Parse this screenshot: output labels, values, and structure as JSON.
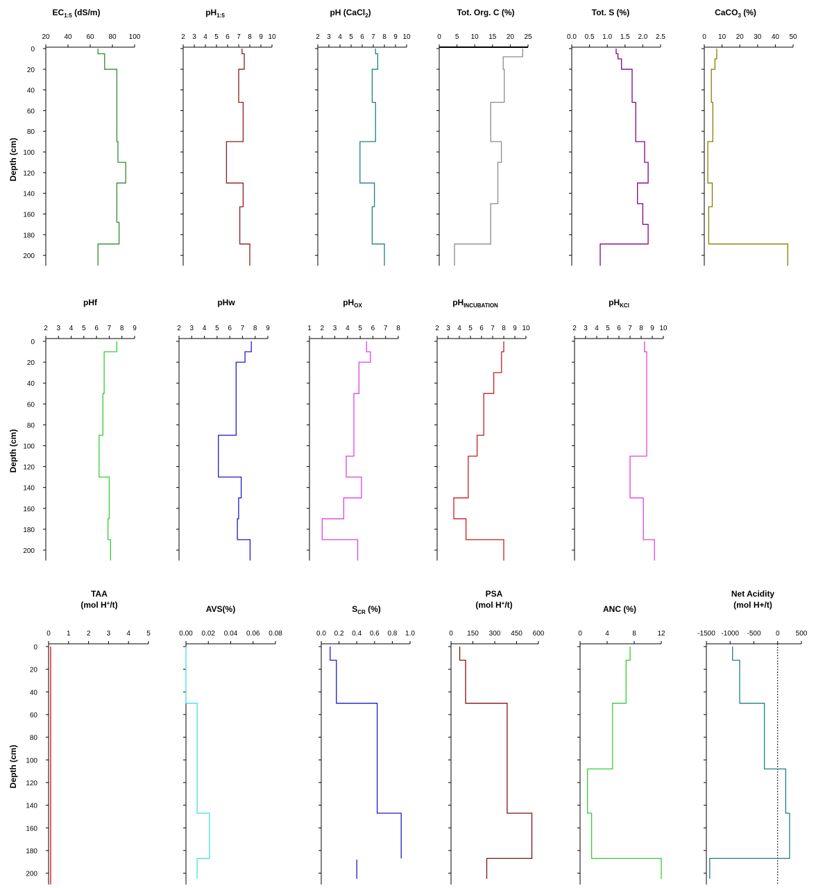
{
  "figure": {
    "ylabel": "Depth (cm)"
  },
  "chart_data": [
    {
      "id": "ec",
      "type": "line",
      "title": "EC",
      "title_sub": "1:5",
      "title_tail": " (dS/m)",
      "xticks": [
        "20",
        "40",
        "60",
        "80",
        "100"
      ],
      "xlim": [
        20,
        100
      ],
      "yticks": [
        "0",
        "20",
        "40",
        "60",
        "80",
        "100",
        "120",
        "140",
        "160",
        "180",
        "200"
      ],
      "ylim": [
        0,
        210
      ],
      "color": "#2e8b2e",
      "y": [
        0,
        5,
        5,
        20,
        20,
        90,
        90,
        110,
        110,
        130,
        130,
        168,
        168,
        189,
        189,
        210
      ],
      "x": [
        67,
        67,
        73,
        73,
        84,
        84,
        85,
        85,
        92,
        92,
        84,
        84,
        86,
        86,
        67,
        67
      ]
    },
    {
      "id": "ph15",
      "type": "line",
      "title": "pH",
      "title_sub": "1:5",
      "title_tail": "",
      "xticks": [
        "2",
        "3",
        "4",
        "5",
        "6",
        "7",
        "8",
        "9",
        "10"
      ],
      "xlim": [
        2,
        10
      ],
      "yticks": [
        "0",
        "20",
        "40",
        "60",
        "80",
        "100",
        "120",
        "140",
        "160",
        "180",
        "200"
      ],
      "ylim": [
        0,
        210
      ],
      "color": "#8b1a1a",
      "y": [
        0,
        5,
        5,
        20,
        20,
        52,
        52,
        90,
        90,
        130,
        130,
        153,
        153,
        189,
        189,
        210
      ],
      "x": [
        7.3,
        7.3,
        7.5,
        7.5,
        7.0,
        7.0,
        7.4,
        7.4,
        5.9,
        5.9,
        7.4,
        7.4,
        7.1,
        7.1,
        8.0,
        8.0
      ]
    },
    {
      "id": "phcacl2",
      "type": "line",
      "title": "pH (CaCl",
      "title_sub": "2",
      "title_tail": ")",
      "xticks": [
        "2",
        "3",
        "4",
        "5",
        "6",
        "7",
        "8",
        "9",
        "10"
      ],
      "xlim": [
        2,
        10
      ],
      "yticks": [
        "0",
        "20",
        "40",
        "60",
        "80",
        "100",
        "120",
        "140",
        "160",
        "180",
        "200"
      ],
      "ylim": [
        0,
        210
      ],
      "color": "#1a8080",
      "y": [
        0,
        5,
        5,
        20,
        20,
        52,
        52,
        90,
        90,
        130,
        130,
        153,
        153,
        189,
        189,
        210
      ],
      "x": [
        7.2,
        7.2,
        7.4,
        7.4,
        6.9,
        6.9,
        7.2,
        7.2,
        5.8,
        5.8,
        7.1,
        7.1,
        6.9,
        6.9,
        8.0,
        8.0
      ]
    },
    {
      "id": "toc",
      "type": "line",
      "title": "Tot. Org. C (%)",
      "title_sub": "",
      "title_tail": "",
      "xticks": [
        "0",
        "5",
        "10",
        "15",
        "20",
        "25"
      ],
      "xlim": [
        0,
        25
      ],
      "yticks": [
        "0",
        "20",
        "40",
        "60",
        "80",
        "100",
        "120",
        "140",
        "160",
        "180",
        "200"
      ],
      "ylim": [
        0,
        210
      ],
      "color": "#8a8a8a",
      "y": [
        0,
        8,
        8,
        20,
        20,
        52,
        52,
        90,
        90,
        110,
        110,
        150,
        150,
        189,
        189,
        210
      ],
      "x": [
        23.5,
        23.5,
        18,
        18,
        18.3,
        18.3,
        14.5,
        14.5,
        17.5,
        17.5,
        16.5,
        16.5,
        14.5,
        14.5,
        4.3,
        4.3
      ]
    },
    {
      "id": "tots",
      "type": "line",
      "title": "Tot. S (%)",
      "title_sub": "",
      "title_tail": "",
      "xticks": [
        "0.0",
        "0.5",
        "1.0",
        "1.5",
        "2.0",
        "2.5"
      ],
      "xlim": [
        0,
        2.5
      ],
      "yticks": [
        "0",
        "20",
        "40",
        "60",
        "80",
        "100",
        "120",
        "140",
        "160",
        "180",
        "200"
      ],
      "ylim": [
        0,
        210
      ],
      "color": "#800080",
      "y": [
        0,
        5,
        5,
        10,
        10,
        20,
        20,
        52,
        52,
        90,
        90,
        110,
        110,
        130,
        130,
        150,
        150,
        170,
        170,
        189,
        189,
        210
      ],
      "x": [
        1.25,
        1.25,
        1.3,
        1.3,
        1.4,
        1.4,
        1.7,
        1.7,
        1.8,
        1.8,
        2.05,
        2.05,
        2.15,
        2.15,
        1.85,
        1.85,
        2.0,
        2.0,
        2.15,
        2.15,
        0.8,
        0.8
      ]
    },
    {
      "id": "caco3",
      "type": "line",
      "title": "CaCO",
      "title_sub": "3",
      "title_tail": " (%)",
      "xticks": [
        "0",
        "10",
        "20",
        "30",
        "40",
        "50"
      ],
      "xlim": [
        0,
        50
      ],
      "yticks": [
        "0",
        "20",
        "40",
        "60",
        "80",
        "100",
        "120",
        "140",
        "160",
        "180",
        "200"
      ],
      "ylim": [
        0,
        210
      ],
      "color": "#808000",
      "y": [
        0,
        10,
        10,
        20,
        20,
        52,
        52,
        90,
        90,
        130,
        130,
        153,
        153,
        189,
        189,
        210
      ],
      "x": [
        7,
        7,
        6,
        6,
        4,
        4,
        4.8,
        4.8,
        2,
        2,
        4.5,
        4.5,
        2.5,
        2.5,
        47,
        47
      ]
    },
    {
      "id": "phf",
      "type": "line",
      "title": "pHf",
      "title_sub": "",
      "title_tail": "",
      "xticks": [
        "2",
        "3",
        "4",
        "5",
        "6",
        "7",
        "8",
        "9"
      ],
      "xlim": [
        2,
        9
      ],
      "yticks": [
        "0",
        "20",
        "40",
        "60",
        "80",
        "100",
        "120",
        "140",
        "160",
        "180",
        "200"
      ],
      "ylim": [
        0,
        210
      ],
      "color": "#33cc33",
      "y": [
        0,
        10,
        10,
        50,
        50,
        90,
        90,
        130,
        130,
        170,
        170,
        190,
        190,
        210
      ],
      "x": [
        7.6,
        7.6,
        6.6,
        6.6,
        6.5,
        6.5,
        6.2,
        6.2,
        7.0,
        7.0,
        6.9,
        6.9,
        7.1,
        7.1
      ]
    },
    {
      "id": "phw",
      "type": "line",
      "title": "pHw",
      "title_sub": "",
      "title_tail": "",
      "xticks": [
        "2",
        "3",
        "4",
        "5",
        "6",
        "7",
        "8",
        "9"
      ],
      "xlim": [
        2,
        9
      ],
      "yticks": [
        "0",
        "20",
        "40",
        "60",
        "80",
        "100",
        "120",
        "140",
        "160",
        "180",
        "200"
      ],
      "ylim": [
        0,
        210
      ],
      "color": "#1a1acc",
      "y": [
        0,
        10,
        10,
        20,
        20,
        90,
        90,
        130,
        130,
        150,
        150,
        170,
        170,
        190,
        190,
        210
      ],
      "x": [
        7.7,
        7.7,
        7.2,
        7.2,
        6.5,
        6.5,
        5.1,
        5.1,
        6.9,
        6.9,
        6.7,
        6.7,
        6.6,
        6.6,
        7.6,
        7.6
      ]
    },
    {
      "id": "phox",
      "type": "line",
      "title": "pH",
      "title_sub": "OX",
      "title_tail": "",
      "xticks": [
        "1",
        "2",
        "3",
        "4",
        "5",
        "6",
        "7",
        "8"
      ],
      "xlim": [
        1,
        8
      ],
      "yticks": [
        "0",
        "20",
        "40",
        "60",
        "80",
        "100",
        "120",
        "140",
        "160",
        "180",
        "200"
      ],
      "ylim": [
        0,
        210
      ],
      "color": "#e040e0",
      "y": [
        0,
        10,
        10,
        20,
        20,
        50,
        50,
        110,
        110,
        130,
        130,
        150,
        150,
        170,
        170,
        190,
        190,
        210
      ],
      "x": [
        5.5,
        5.5,
        5.8,
        5.8,
        4.9,
        4.9,
        4.5,
        4.5,
        3.9,
        3.9,
        5.1,
        5.1,
        3.7,
        3.7,
        2.0,
        2.0,
        4.8,
        4.8
      ]
    },
    {
      "id": "phinc",
      "type": "line",
      "title": "pH",
      "title_sub": "INCUBATION",
      "title_tail": "",
      "xticks": [
        "2",
        "3",
        "4",
        "5",
        "6",
        "7",
        "8",
        "9",
        "10"
      ],
      "xlim": [
        2,
        10
      ],
      "yticks": [
        "0",
        "20",
        "40",
        "60",
        "80",
        "100",
        "120",
        "140",
        "160",
        "180",
        "200"
      ],
      "ylim": [
        0,
        210
      ],
      "color": "#cc1a1a",
      "y": [
        0,
        10,
        10,
        30,
        30,
        50,
        50,
        90,
        90,
        110,
        110,
        150,
        150,
        170,
        170,
        190,
        190,
        210
      ],
      "x": [
        8.0,
        8.0,
        7.8,
        7.8,
        7.1,
        7.1,
        6.2,
        6.2,
        5.6,
        5.6,
        4.8,
        4.8,
        3.5,
        3.5,
        4.6,
        4.6,
        8.0,
        8.0
      ]
    },
    {
      "id": "phkcl",
      "type": "line",
      "title": "pH",
      "title_sub": "KCl",
      "title_tail": "",
      "xticks": [
        "2",
        "3",
        "4",
        "5",
        "6",
        "7",
        "8",
        "9",
        "10"
      ],
      "xlim": [
        2,
        10
      ],
      "yticks": [
        "0",
        "20",
        "40",
        "60",
        "80",
        "100",
        "120",
        "140",
        "160",
        "180",
        "200"
      ],
      "ylim": [
        0,
        210
      ],
      "color": "#e040e0",
      "y": [
        0,
        10,
        10,
        110,
        110,
        150,
        150,
        190,
        190,
        210
      ],
      "x": [
        8.3,
        8.3,
        8.5,
        8.5,
        7.0,
        7.0,
        8.2,
        8.2,
        9.2,
        9.2
      ]
    },
    {
      "id": "taa",
      "type": "line",
      "title": "TAA",
      "title_line2": "(mol H",
      "title_line2_sup": "+",
      "title_line2_tail": "/t)",
      "title_sub": "",
      "title_tail": "",
      "xticks": [
        "0",
        "1",
        "2",
        "3",
        "4",
        "5"
      ],
      "xlim": [
        0,
        5
      ],
      "yticks": [
        "0",
        "20",
        "40",
        "60",
        "80",
        "100",
        "120",
        "140",
        "160",
        "180",
        "200"
      ],
      "ylim": [
        0,
        210
      ],
      "color": "#ff0000",
      "y": [
        0,
        210
      ],
      "x": [
        0.1,
        0.1
      ]
    },
    {
      "id": "avs",
      "type": "line",
      "title": "AVS(%)",
      "title_sub": "",
      "title_tail": "",
      "xticks": [
        "0.00",
        "0.02",
        "0.04",
        "0.06",
        "0.08"
      ],
      "xlim": [
        0,
        0.08
      ],
      "yticks": [
        "0",
        "20",
        "40",
        "60",
        "80",
        "100",
        "120",
        "140",
        "160",
        "180",
        "200"
      ],
      "ylim": [
        0,
        210
      ],
      "color": "#40e0e0",
      "y": [
        0,
        50,
        50,
        147,
        147,
        187,
        187,
        205
      ],
      "x": [
        0.0,
        0.0,
        0.01,
        0.01,
        0.021,
        0.021,
        0.01,
        0.01
      ]
    },
    {
      "id": "scr",
      "type": "line",
      "title": "S",
      "title_sub": "CR",
      "title_tail": " (%)",
      "xticks": [
        "0.0",
        "0.2",
        "0.4",
        "0.6",
        "0.8",
        "1.0"
      ],
      "xlim": [
        0,
        1
      ],
      "yticks": [
        "0",
        "20",
        "40",
        "60",
        "80",
        "100",
        "120",
        "140",
        "160",
        "180",
        "200"
      ],
      "ylim": [
        0,
        210
      ],
      "color": "#1a1acc",
      "y": [
        0,
        12,
        12,
        50,
        50,
        147,
        147,
        187
      ],
      "x": [
        0.1,
        0.1,
        0.17,
        0.17,
        0.63,
        0.63,
        0.9,
        0.9
      ],
      "extra_x": [
        0.4,
        0.4
      ],
      "extra_y": [
        188,
        205
      ]
    },
    {
      "id": "psa",
      "type": "line",
      "title": "PSA",
      "title_line2": "(mol H",
      "title_line2_sup": "+",
      "title_line2_tail": "/t)",
      "title_sub": "",
      "title_tail": "",
      "xticks": [
        "0",
        "150",
        "300",
        "450",
        "600"
      ],
      "xlim": [
        0,
        600
      ],
      "yticks": [
        "0",
        "20",
        "40",
        "60",
        "80",
        "100",
        "120",
        "140",
        "160",
        "180",
        "200"
      ],
      "ylim": [
        0,
        210
      ],
      "color": "#801010",
      "y": [
        0,
        12,
        12,
        50,
        50,
        147,
        147,
        187,
        187,
        205
      ],
      "x": [
        60,
        60,
        100,
        100,
        385,
        385,
        555,
        555,
        245,
        245
      ]
    },
    {
      "id": "anc",
      "type": "line",
      "title": "ANC (%)",
      "title_sub": "",
      "title_tail": "",
      "xticks": [
        "0",
        "4",
        "8",
        "12"
      ],
      "xlim": [
        0,
        12
      ],
      "yticks": [
        "0",
        "20",
        "40",
        "60",
        "80",
        "100",
        "120",
        "140",
        "160",
        "180",
        "200"
      ],
      "ylim": [
        0,
        210
      ],
      "color": "#33cc33",
      "y": [
        0,
        12,
        12,
        50,
        50,
        108,
        108,
        147,
        147,
        187,
        187,
        205
      ],
      "x": [
        7.4,
        7.4,
        6.8,
        6.8,
        4.8,
        4.8,
        1.1,
        1.1,
        1.7,
        1.7,
        12,
        12
      ]
    },
    {
      "id": "netacid",
      "type": "line",
      "title": "Net Acidity",
      "title_line2": "(mol H+/t)",
      "title_sub": "",
      "title_tail": "",
      "xticks": [
        "-1500",
        "-1000",
        "-500",
        "0",
        "500"
      ],
      "xlim": [
        -1500,
        500
      ],
      "yticks": [
        "0",
        "20",
        "40",
        "60",
        "80",
        "100",
        "120",
        "140",
        "160",
        "180",
        "200"
      ],
      "ylim": [
        0,
        210
      ],
      "color": "#1a8080",
      "y": [
        0,
        12,
        12,
        50,
        50,
        108,
        108,
        147,
        147,
        187,
        187,
        205
      ],
      "x": [
        -950,
        -950,
        -800,
        -800,
        -280,
        -280,
        170,
        170,
        250,
        250,
        -1430,
        -1430
      ],
      "zero_line": true
    }
  ]
}
